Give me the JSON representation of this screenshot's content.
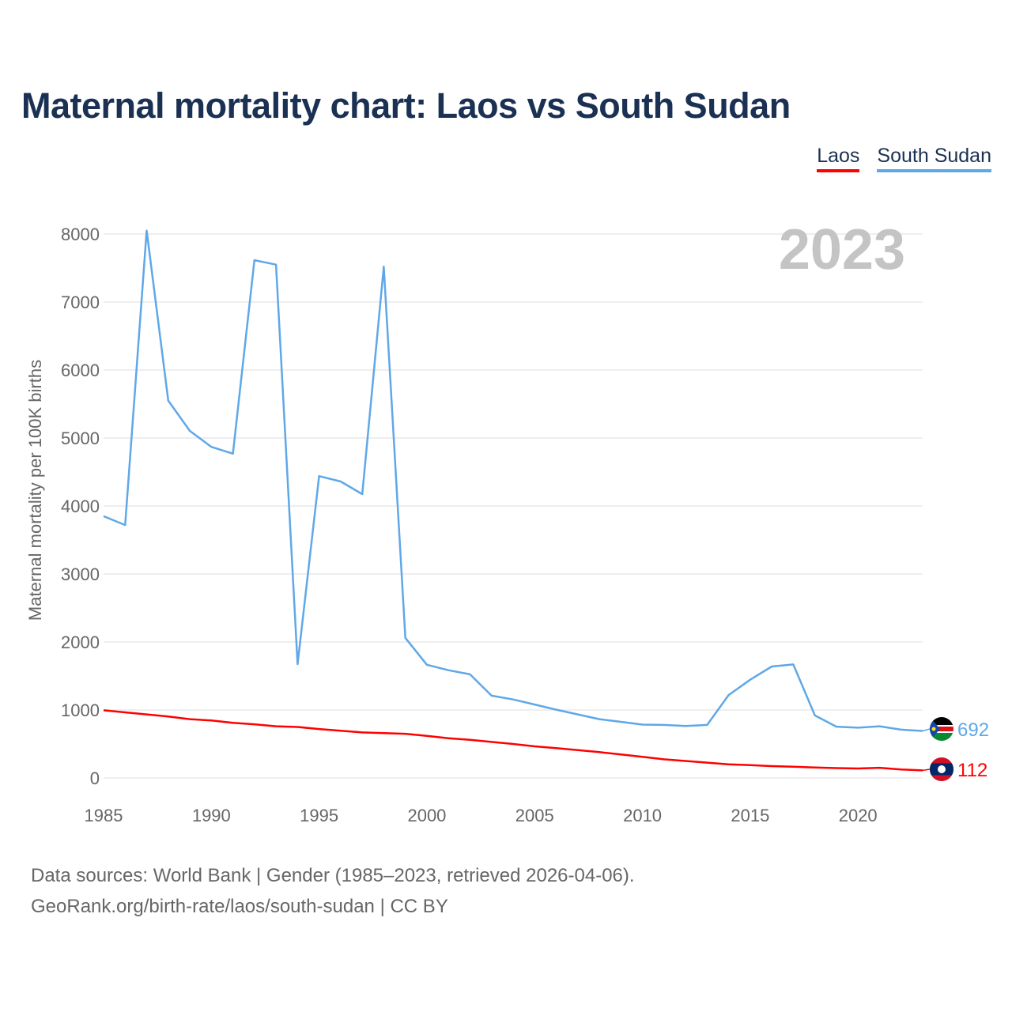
{
  "chart_data": {
    "type": "line",
    "title": "Maternal mortality chart: Laos vs South Sudan",
    "ylabel": "Maternal mortality per 100K births",
    "xlabel": "",
    "xlim": [
      1985,
      2023
    ],
    "ylim": [
      0,
      8000
    ],
    "xticks": [
      1985,
      1990,
      1995,
      2000,
      2005,
      2010,
      2015,
      2020
    ],
    "yticks": [
      0,
      1000,
      2000,
      3000,
      4000,
      5000,
      6000,
      7000,
      8000
    ],
    "grid": true,
    "legend_position": "top-right",
    "year_label": "2023",
    "x": [
      1985,
      1986,
      1987,
      1988,
      1989,
      1990,
      1991,
      1992,
      1993,
      1994,
      1995,
      1996,
      1997,
      1998,
      1999,
      2000,
      2001,
      2002,
      2003,
      2004,
      2005,
      2006,
      2007,
      2008,
      2009,
      2010,
      2011,
      2012,
      2013,
      2014,
      2015,
      2016,
      2017,
      2018,
      2019,
      2020,
      2021,
      2022,
      2023
    ],
    "series": [
      {
        "name": "Laos",
        "color": "#ff0000",
        "end_label": "112",
        "values": [
          995,
          965,
          935,
          905,
          865,
          845,
          810,
          790,
          760,
          750,
          720,
          695,
          670,
          660,
          650,
          620,
          585,
          560,
          530,
          500,
          465,
          440,
          410,
          380,
          345,
          310,
          275,
          250,
          225,
          200,
          190,
          175,
          165,
          155,
          145,
          140,
          150,
          125,
          112
        ]
      },
      {
        "name": "South Sudan",
        "color": "#5fa8e8",
        "end_label": "692",
        "values": [
          3850,
          3720,
          8050,
          5550,
          5105,
          4870,
          4770,
          7615,
          7550,
          1675,
          4440,
          4360,
          4175,
          7520,
          2060,
          1665,
          1585,
          1525,
          1210,
          1155,
          1080,
          1005,
          935,
          865,
          825,
          785,
          780,
          765,
          780,
          1220,
          1445,
          1640,
          1670,
          920,
          755,
          740,
          760,
          710,
          692
        ]
      }
    ]
  },
  "footer": {
    "line1": "Data sources: World Bank | Gender (1985–2023, retrieved 2026-04-06).",
    "line2": "GeoRank.org/birth-rate/laos/south-sudan | CC BY"
  }
}
